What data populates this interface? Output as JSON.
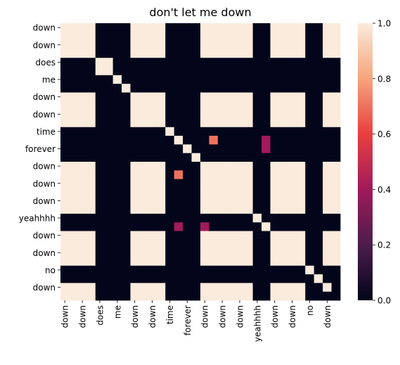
{
  "chart_data": {
    "type": "heatmap",
    "title": "don't let me down",
    "xlabel": "",
    "ylabel": "",
    "tokens": [
      "down",
      "down",
      "down",
      "down",
      "does",
      "does",
      "me",
      "me",
      "down",
      "down",
      "down",
      "down",
      "time",
      "forever",
      "forever",
      "forever",
      "down",
      "down",
      "down",
      "down",
      "down",
      "down",
      "yeahhhh",
      "yeahhhh",
      "down",
      "down",
      "down",
      "down",
      "no",
      "no",
      "down",
      "down"
    ],
    "x_tick_labels": [
      "down",
      "down",
      "does",
      "me",
      "down",
      "down",
      "time",
      "forever",
      "down",
      "down",
      "down",
      "yeahhhh",
      "down",
      "down",
      "no",
      "down"
    ],
    "y_tick_labels": [
      "down",
      "down",
      "does",
      "me",
      "down",
      "down",
      "time",
      "forever",
      "down",
      "down",
      "down",
      "yeahhhh",
      "down",
      "down",
      "no",
      "down"
    ],
    "x_tick_indices": [
      0,
      2,
      4,
      6,
      8,
      10,
      12,
      14,
      16,
      18,
      20,
      22,
      24,
      26,
      28,
      30
    ],
    "y_tick_indices": [
      0,
      2,
      4,
      6,
      8,
      10,
      12,
      14,
      16,
      18,
      20,
      22,
      24,
      26,
      28,
      30
    ],
    "value_rule": "cell value = 1 when the two tokens are the same word, 0 otherwise; extra overrides listed",
    "overrides": [
      {
        "row": 14,
        "col": 15,
        "value": 0.0
      },
      {
        "row": 15,
        "col": 14,
        "value": 0.0
      },
      {
        "row": 13,
        "col": 15,
        "value": 0.0
      },
      {
        "row": 15,
        "col": 13,
        "value": 0.0
      },
      {
        "row": 13,
        "col": 14,
        "value": 0.0
      },
      {
        "row": 14,
        "col": 13,
        "value": 0.0
      },
      {
        "row": 6,
        "col": 7,
        "value": 0.0
      },
      {
        "row": 7,
        "col": 6,
        "value": 0.0
      },
      {
        "row": 14,
        "col": 16,
        "value": 0.0
      },
      {
        "row": 13,
        "col": 17,
        "value": 0.7
      },
      {
        "row": 17,
        "col": 13,
        "value": 0.7
      },
      {
        "row": 13,
        "col": 23,
        "value": 0.4
      },
      {
        "row": 14,
        "col": 23,
        "value": 0.4
      },
      {
        "row": 23,
        "col": 13,
        "value": 0.4
      },
      {
        "row": 23,
        "col": 16,
        "value": 0.4
      },
      {
        "row": 22,
        "col": 23,
        "value": 0.0
      },
      {
        "row": 23,
        "col": 22,
        "value": 0.0
      },
      {
        "row": 28,
        "col": 29,
        "value": 0.0
      },
      {
        "row": 29,
        "col": 28,
        "value": 0.0
      },
      {
        "row": 30,
        "col": 31,
        "value": 0.0
      },
      {
        "row": 31,
        "col": 30,
        "value": 0.0
      },
      {
        "row": 31,
        "col": 31,
        "value": 0.0
      },
      {
        "row": 30,
        "col": 30,
        "value": 1.0
      },
      {
        "row": 29,
        "col": 29,
        "value": 1.0
      },
      {
        "row": 28,
        "col": 28,
        "value": 1.0
      }
    ],
    "colorbar": {
      "vmin": 0.0,
      "vmax": 1.0,
      "ticks": [
        0.0,
        0.2,
        0.4,
        0.6,
        0.8,
        1.0
      ],
      "tick_labels": [
        "0.0",
        "0.2",
        "0.4",
        "0.6",
        "0.8",
        "1.0"
      ]
    },
    "colormap_stops": [
      "#03051a",
      "#4c1d4b",
      "#a11a5b",
      "#e83f3f",
      "#f6a47c",
      "#faebdd"
    ],
    "grid": false,
    "legend": "colorbar-right"
  }
}
